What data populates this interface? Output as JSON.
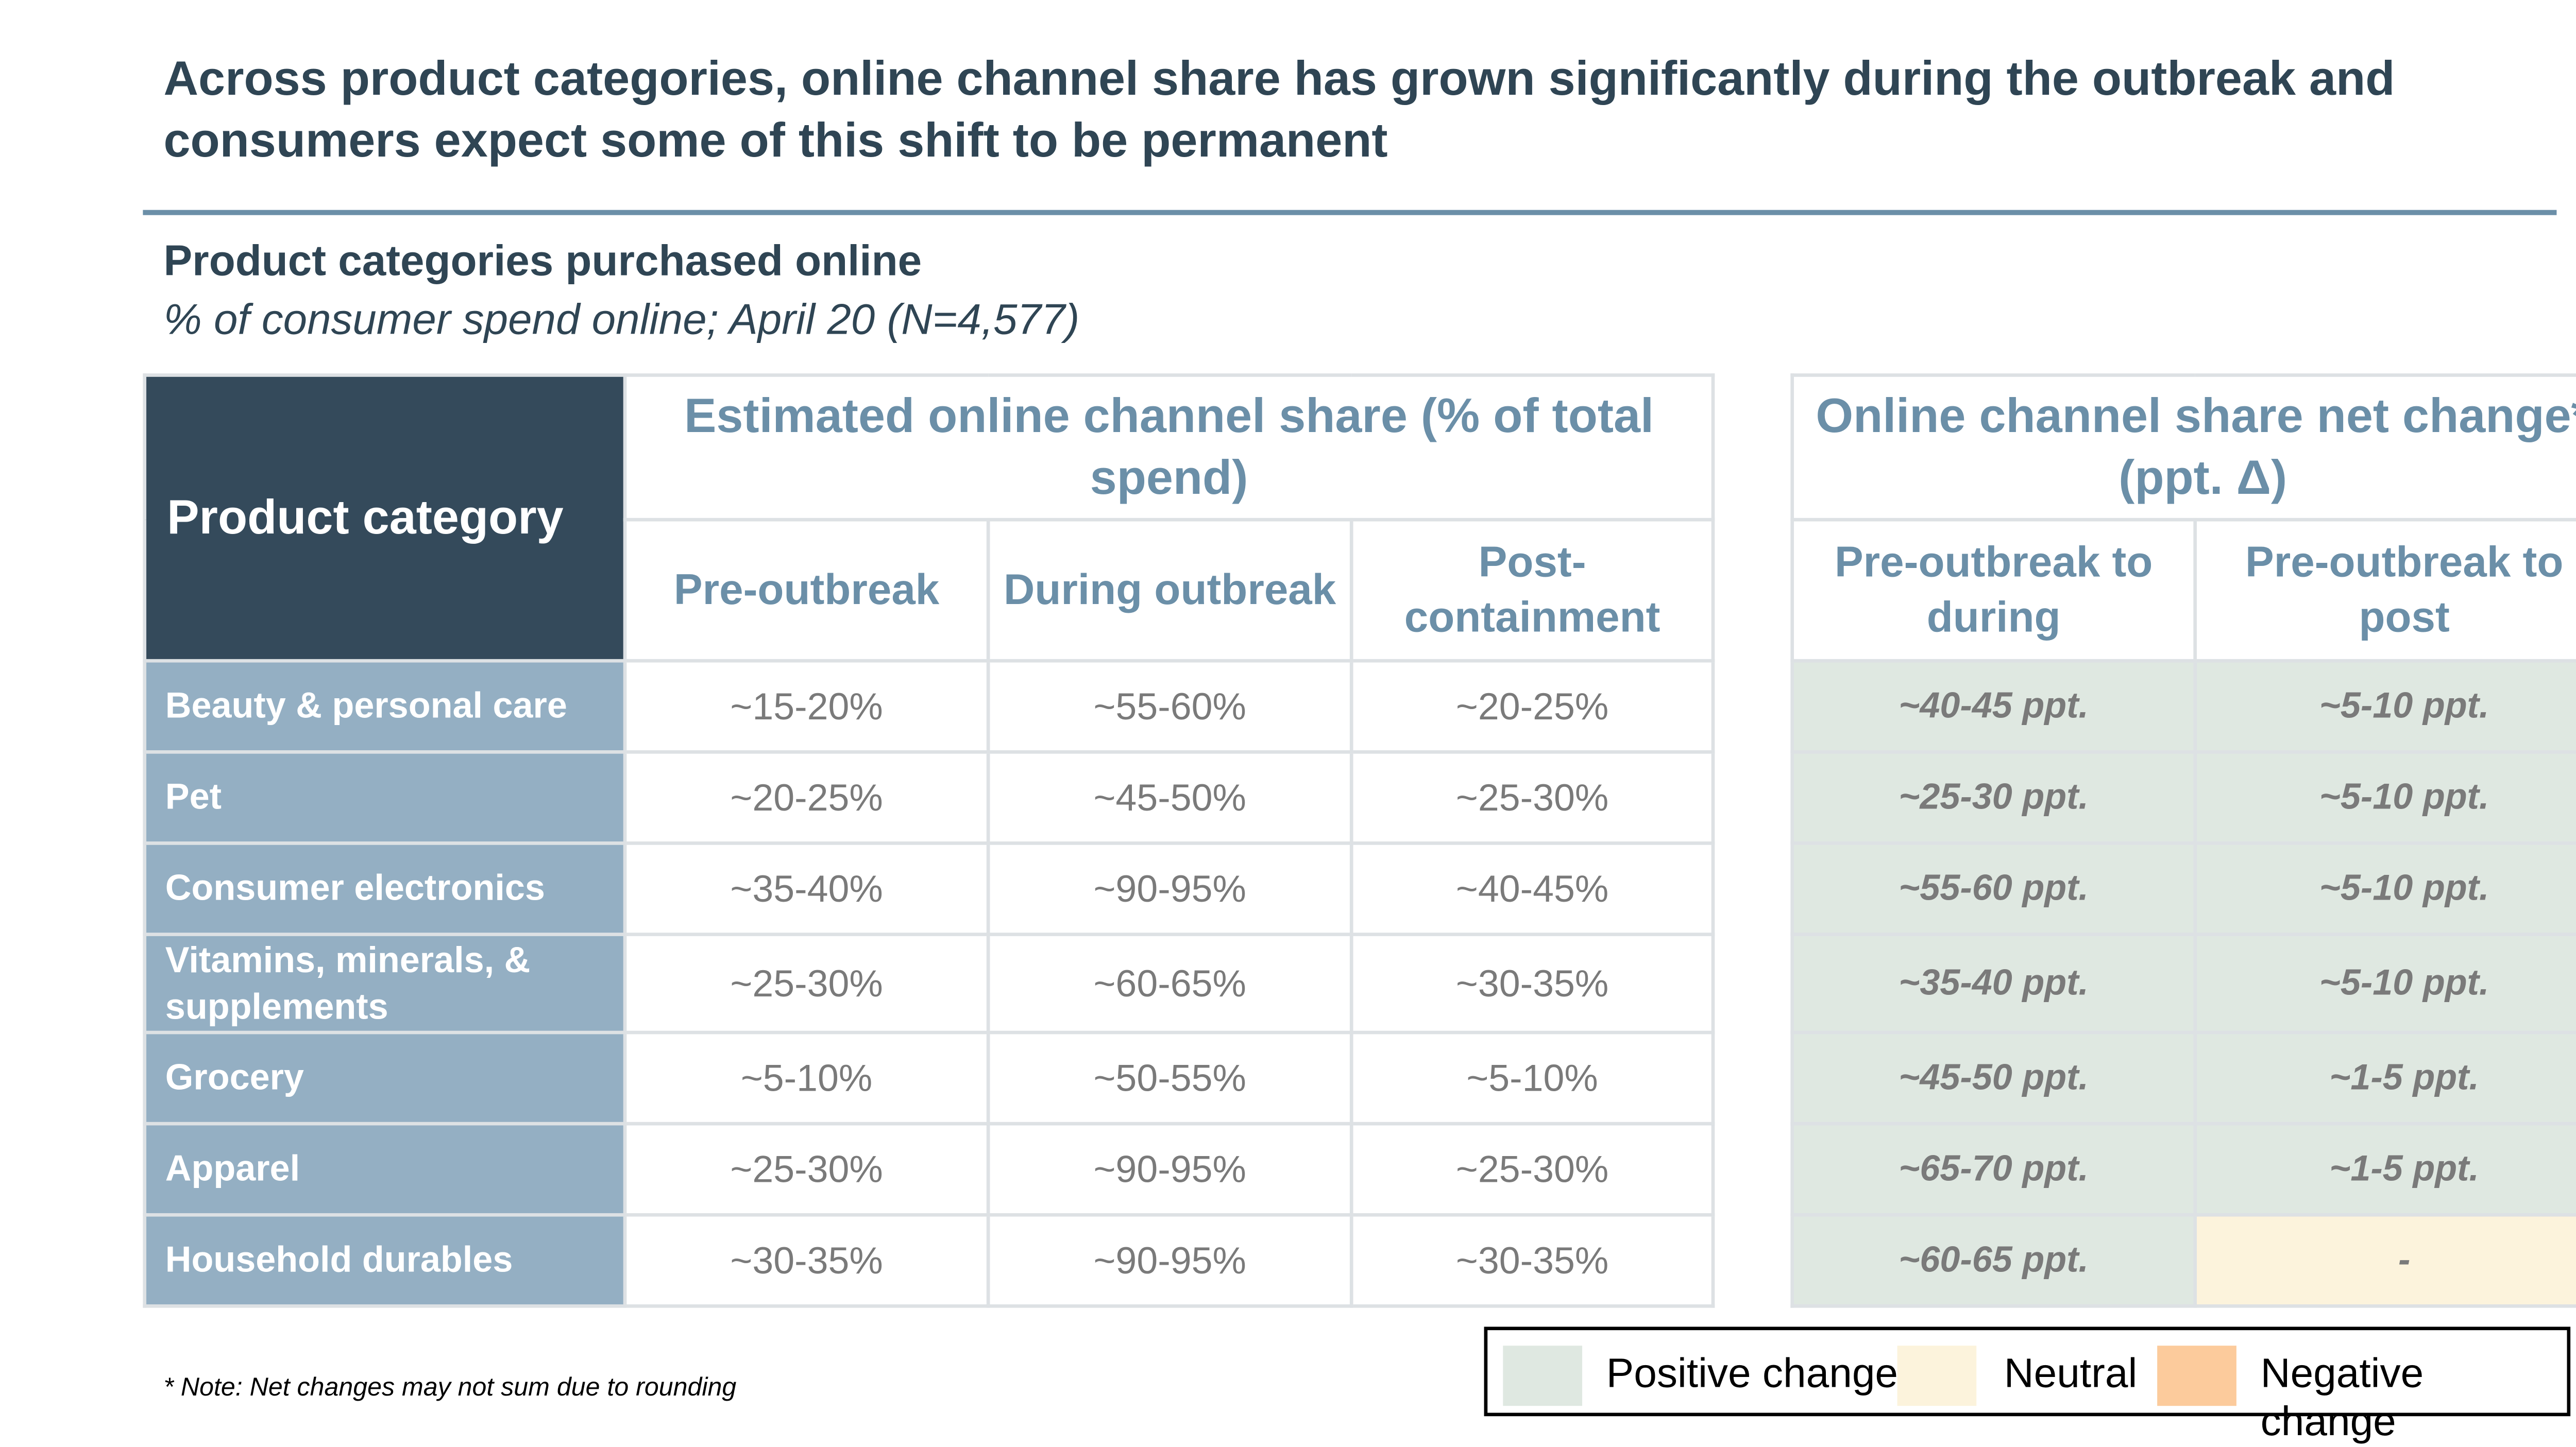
{
  "title": "Across product categories, online channel share has grown significantly during the outbreak and consumers expect some of this shift to be permanent",
  "subtitle": "Product categories purchased online",
  "subsubtitle": "% of consumer spend online; April 20 (N=4,577)",
  "table": {
    "corner_label": "Product category",
    "group_left": "Estimated online channel share (% of total spend)",
    "group_right": "Online channel share net change* (ppt. Δ)",
    "columns": [
      "Pre-outbreak",
      "During outbreak",
      "Post-containment",
      "Pre-outbreak to during",
      "Pre-outbreak to post"
    ],
    "rows": [
      {
        "category": "Beauty & personal care",
        "pre": "~15-20%",
        "during": "~55-60%",
        "post": "~20-25%",
        "delta_during": "~40-45 ppt.",
        "delta_post": "~5-10 ppt."
      },
      {
        "category": "Pet",
        "pre": "~20-25%",
        "during": "~45-50%",
        "post": "~25-30%",
        "delta_during": "~25-30 ppt.",
        "delta_post": "~5-10 ppt."
      },
      {
        "category": "Consumer electronics",
        "pre": "~35-40%",
        "during": "~90-95%",
        "post": "~40-45%",
        "delta_during": "~55-60 ppt.",
        "delta_post": "~5-10 ppt."
      },
      {
        "category": "Vitamins, minerals, & supplements",
        "pre": "~25-30%",
        "during": "~60-65%",
        "post": "~30-35%",
        "delta_during": "~35-40 ppt.",
        "delta_post": "~5-10 ppt."
      },
      {
        "category": "Grocery",
        "pre": "~5-10%",
        "during": "~50-55%",
        "post": "~5-10%",
        "delta_during": "~45-50 ppt.",
        "delta_post": "~1-5 ppt."
      },
      {
        "category": "Apparel",
        "pre": "~25-30%",
        "during": "~90-95%",
        "post": "~25-30%",
        "delta_during": "~65-70 ppt.",
        "delta_post": "~1-5 ppt."
      },
      {
        "category": "Household durables",
        "pre": "~30-35%",
        "during": "~90-95%",
        "post": "~30-35%",
        "delta_during": "~60-65 ppt.",
        "delta_post": "-"
      }
    ]
  },
  "note": "* Note: Net changes may not sum due to rounding",
  "legend": [
    {
      "label": "Positive change",
      "color": "#dfe8e1"
    },
    {
      "label": "Neutral",
      "color": "#fcf3dc"
    },
    {
      "label": "Negative change",
      "color": "#fccb9c"
    }
  ]
}
